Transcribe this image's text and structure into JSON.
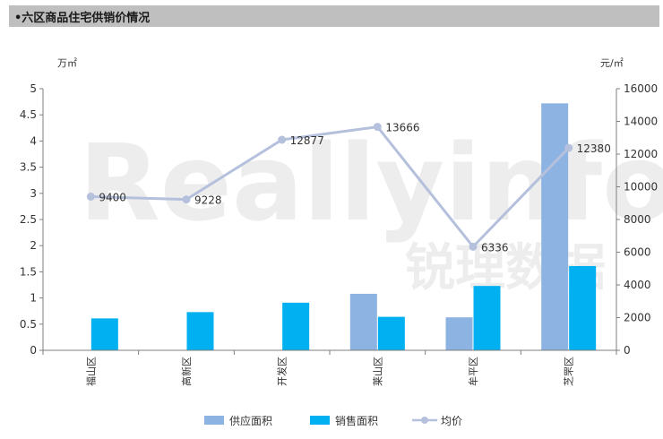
{
  "header": {
    "title": "•六区商品住宅供销价情况"
  },
  "watermark": {
    "latin": "Reallyinfo",
    "cn": "锐理数据"
  },
  "chart_data": {
    "type": "bar",
    "categories": [
      "福山区",
      "高新区",
      "开发区",
      "莱山区",
      "牟平区",
      "芝罘区"
    ],
    "series": [
      {
        "name": "供应面积",
        "type": "bar",
        "axis": "left",
        "color": "#8db3e2",
        "values": [
          0,
          0,
          0,
          1.08,
          0.63,
          4.72
        ]
      },
      {
        "name": "销售面积",
        "type": "bar",
        "axis": "left",
        "color": "#00b0f0",
        "values": [
          0.61,
          0.73,
          0.91,
          0.64,
          1.23,
          1.61
        ]
      },
      {
        "name": "均价",
        "type": "line",
        "axis": "right",
        "color": "#b4c0dc",
        "values": [
          9400,
          9228,
          12877,
          13666,
          6336,
          12380
        ]
      }
    ],
    "left_axis": {
      "unit": "万㎡",
      "min": 0,
      "max": 5,
      "ticks": [
        "0",
        "0.5",
        "1",
        "1.5",
        "2",
        "2.5",
        "3",
        "3.5",
        "4",
        "4.5",
        "5"
      ]
    },
    "right_axis": {
      "unit": "元/㎡",
      "min": 0,
      "max": 16000,
      "ticks": [
        "0",
        "2000",
        "4000",
        "6000",
        "8000",
        "10000",
        "12000",
        "14000",
        "16000"
      ]
    },
    "data_labels": [
      "9400",
      "9228",
      "12877",
      "13666",
      "6336",
      "12380"
    ],
    "legend_position": "bottom",
    "grid": false
  }
}
